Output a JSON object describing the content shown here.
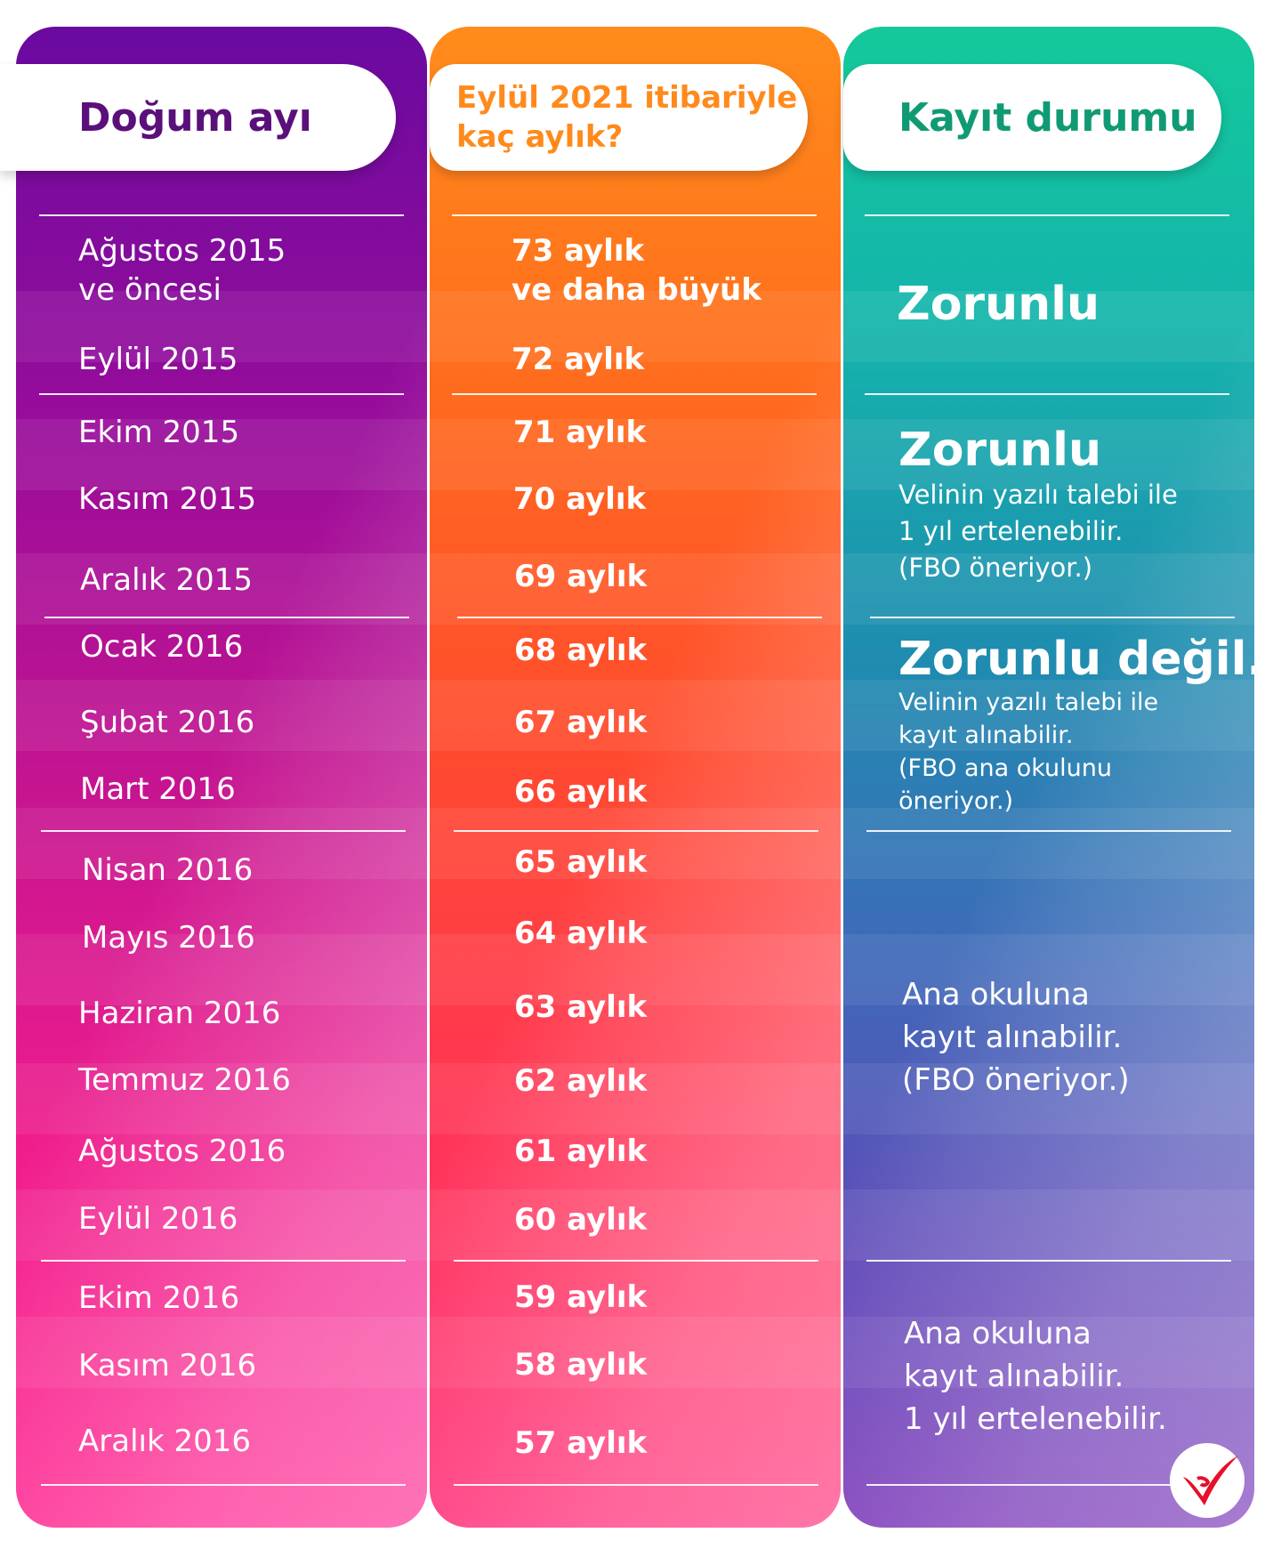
{
  "headers": {
    "birth": "Doğum ayı",
    "age_line1": "Eylül 2021 itibariyle",
    "age_line2": "kaç aylık?",
    "status": "Kayıt durumu"
  },
  "rows": [
    {
      "month_l1": "Ağustos 2015",
      "month_l2": "ve öncesi",
      "age_l1": "73 aylık",
      "age_l2": "ve daha büyük"
    },
    {
      "month_l1": "Eylül 2015",
      "age_l1": "72 aylık"
    },
    {
      "month_l1": "Ekim 2015",
      "age_l1": "71 aylık"
    },
    {
      "month_l1": "Kasım 2015",
      "age_l1": "70 aylık"
    },
    {
      "month_l1": "Aralık 2015",
      "age_l1": "69 aylık"
    },
    {
      "month_l1": "Ocak 2016",
      "age_l1": "68 aylık"
    },
    {
      "month_l1": "Şubat 2016",
      "age_l1": "67 aylık"
    },
    {
      "month_l1": "Mart 2016",
      "age_l1": "66 aylık"
    },
    {
      "month_l1": "Nisan 2016",
      "age_l1": "65 aylık"
    },
    {
      "month_l1": "Mayıs 2016",
      "age_l1": "64 aylık"
    },
    {
      "month_l1": "Haziran 2016",
      "age_l1": "63 aylık"
    },
    {
      "month_l1": "Temmuz 2016",
      "age_l1": "62 aylık"
    },
    {
      "month_l1": "Ağustos 2016",
      "age_l1": "61 aylık"
    },
    {
      "month_l1": "Eylül 2016",
      "age_l1": "60 aylık"
    },
    {
      "month_l1": "Ekim 2016",
      "age_l1": "59 aylık"
    },
    {
      "month_l1": "Kasım 2016",
      "age_l1": "58 aylık"
    },
    {
      "month_l1": "Aralık 2016",
      "age_l1": "57 aylık"
    }
  ],
  "status_groups": [
    {
      "title": "Zorunlu"
    },
    {
      "title": "Zorunlu",
      "lines": [
        "Velinin yazılı talebi ile",
        "1 yıl ertelenebilir.",
        "(FBO öneriyor.)"
      ]
    },
    {
      "title": "Zorunlu değil.",
      "lines": [
        "Velinin yazılı talebi ile",
        "kayıt alınabilir.",
        "(FBO ana okulunu",
        "öneriyor.)"
      ]
    },
    {
      "lines": [
        "Ana okuluna",
        "kayıt alınabilir.",
        "(FBO öneriyor.)"
      ]
    },
    {
      "lines": [
        "Ana okuluna",
        "kayıt alınabilir.",
        "1 yıl ertelenebilir."
      ]
    }
  ],
  "colors": {
    "birth_header_text": "#5a0f7a",
    "age_header_text": "#ff8a1c",
    "status_header_text": "#109a74",
    "logo": "#e5112a"
  },
  "logo_icon": "checkmark-logo-icon"
}
